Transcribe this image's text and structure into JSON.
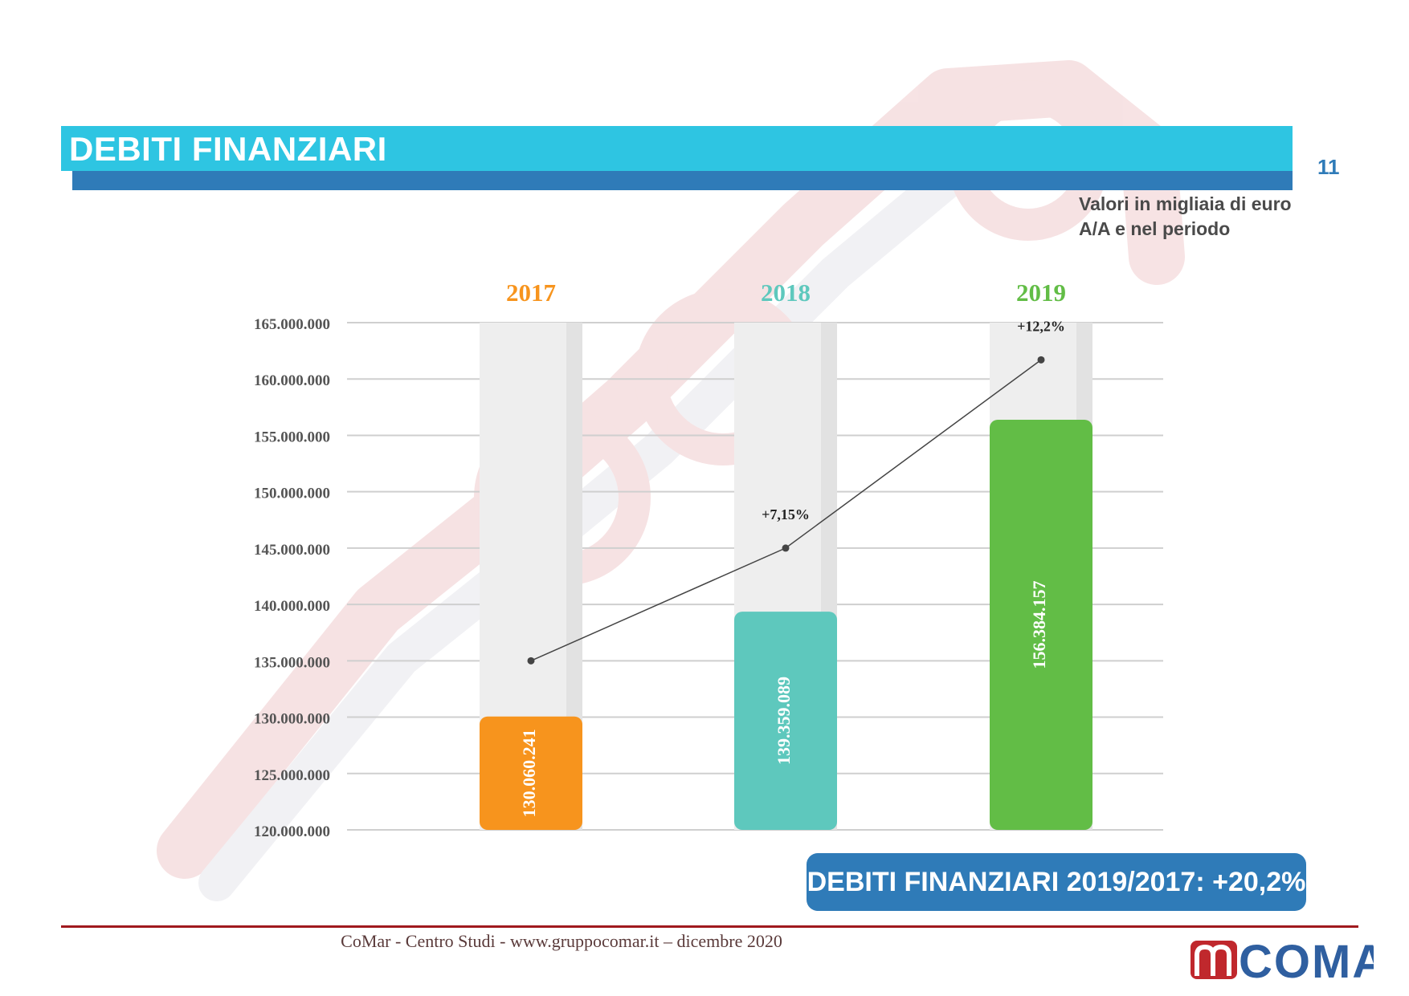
{
  "header": {
    "title": "DEBITI FINANZIARI",
    "page_number": "11",
    "subtitle_line1": "Valori in migliaia di euro",
    "subtitle_line2": "A/A e nel periodo"
  },
  "colors": {
    "title_band": "#2ec5e2",
    "title_underbar": "#2f7bb8",
    "bar_2017": "#f7941d",
    "bar_2018": "#5ec8bd",
    "bar_2019": "#62bd46",
    "column_background": "#eeeeee",
    "footer_line": "#a0191e"
  },
  "chart_data": {
    "type": "bar",
    "categories": [
      "2017",
      "2018",
      "2019"
    ],
    "values": [
      130060241,
      139359089,
      156384157
    ],
    "value_labels": [
      "130.060.241",
      "139.359.089",
      "156.384.157"
    ],
    "bar_colors": [
      "#f7941d",
      "#5ec8bd",
      "#62bd46"
    ],
    "ylim": [
      120000000,
      165000000
    ],
    "y_ticks": [
      120000000,
      125000000,
      130000000,
      135000000,
      140000000,
      145000000,
      150000000,
      155000000,
      160000000,
      165000000
    ],
    "y_tick_labels": [
      "120.000.000",
      "125.000.000",
      "130.000.000",
      "135.000.000",
      "140.000.000",
      "145.000.000",
      "150.000.000",
      "155.000.000",
      "160.000.000",
      "165.000.000"
    ],
    "grid": true,
    "line_series": {
      "values": [
        135000000,
        145000000,
        161700000
      ],
      "labels": [
        "",
        "+7,15%",
        "+12,2%"
      ]
    }
  },
  "summary": {
    "text": "DEBITI FINANZIARI 2019/2017: +20,2%"
  },
  "footer": {
    "text": "CoMar - Centro Studi - www.gruppocomar.it – dicembre 2020",
    "logo_text": "COMAR"
  }
}
